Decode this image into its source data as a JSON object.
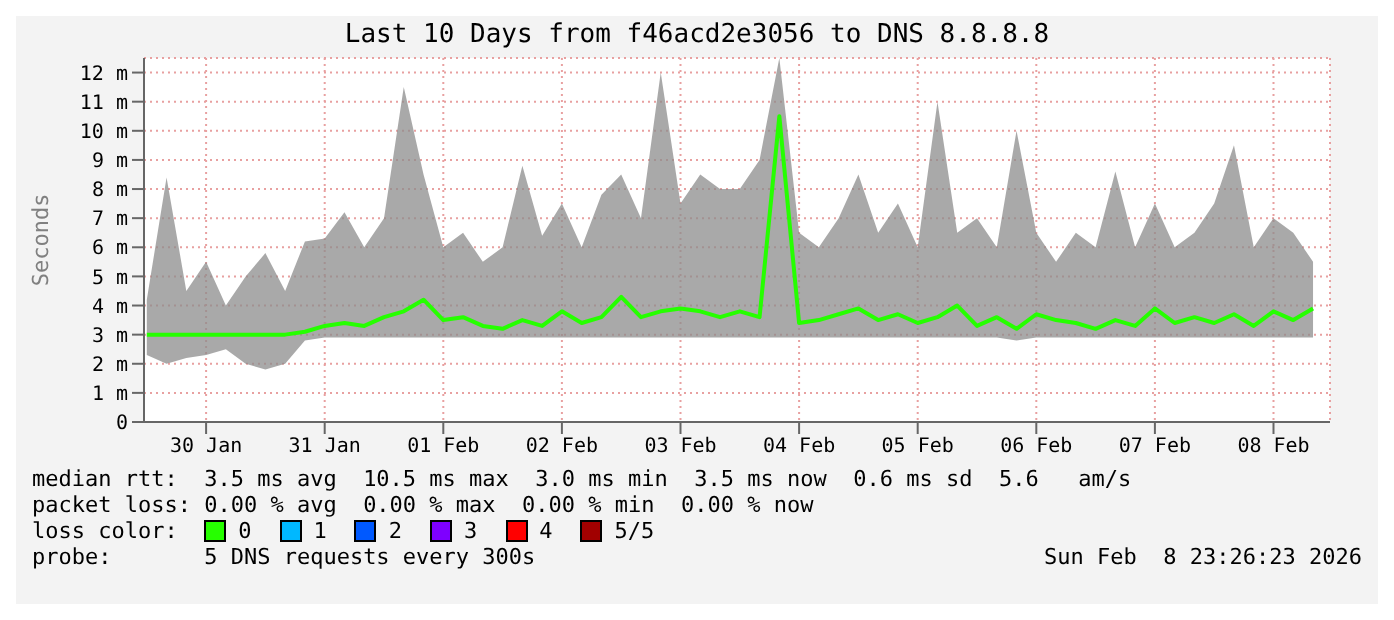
{
  "chart_data": {
    "type": "line",
    "title": "Last 10 Days from f46acd2e3056 to DNS 8.8.8.8",
    "ylabel": "Seconds",
    "x": [
      "2026-01-30T00:00",
      "2026-01-30T04:00",
      "2026-01-30T08:00",
      "2026-01-30T12:00",
      "2026-01-30T16:00",
      "2026-01-30T20:00",
      "2026-01-31T00:00",
      "2026-01-31T04:00",
      "2026-01-31T08:00",
      "2026-01-31T12:00",
      "2026-01-31T16:00",
      "2026-01-31T20:00",
      "2026-02-01T00:00",
      "2026-02-01T04:00",
      "2026-02-01T08:00",
      "2026-02-01T12:00",
      "2026-02-01T16:00",
      "2026-02-01T20:00",
      "2026-02-02T00:00",
      "2026-02-02T04:00",
      "2026-02-02T08:00",
      "2026-02-02T12:00",
      "2026-02-02T16:00",
      "2026-02-02T20:00",
      "2026-02-03T00:00",
      "2026-02-03T04:00",
      "2026-02-03T08:00",
      "2026-02-03T12:00",
      "2026-02-03T16:00",
      "2026-02-03T20:00",
      "2026-02-04T00:00",
      "2026-02-04T04:00",
      "2026-02-04T08:00",
      "2026-02-04T12:00",
      "2026-02-04T16:00",
      "2026-02-04T20:00",
      "2026-02-05T00:00",
      "2026-02-05T04:00",
      "2026-02-05T08:00",
      "2026-02-05T12:00",
      "2026-02-05T16:00",
      "2026-02-05T20:00",
      "2026-02-06T00:00",
      "2026-02-06T04:00",
      "2026-02-06T08:00",
      "2026-02-06T12:00",
      "2026-02-06T16:00",
      "2026-02-06T20:00",
      "2026-02-07T00:00",
      "2026-02-07T04:00",
      "2026-02-07T08:00",
      "2026-02-07T12:00",
      "2026-02-07T16:00",
      "2026-02-07T20:00",
      "2026-02-08T00:00",
      "2026-02-08T04:00",
      "2026-02-08T08:00",
      "2026-02-08T12:00",
      "2026-02-08T16:00",
      "2026-02-08T20:00"
    ],
    "xlim": [
      "2026-01-29T23:26",
      "2026-02-08T23:26"
    ],
    "xticks": [
      {
        "value": "2026-01-30T12:00",
        "label": "30 Jan"
      },
      {
        "value": "2026-01-31T12:00",
        "label": "31 Jan"
      },
      {
        "value": "2026-02-01T12:00",
        "label": "01 Feb"
      },
      {
        "value": "2026-02-02T12:00",
        "label": "02 Feb"
      },
      {
        "value": "2026-02-03T12:00",
        "label": "03 Feb"
      },
      {
        "value": "2026-02-04T12:00",
        "label": "04 Feb"
      },
      {
        "value": "2026-02-05T12:00",
        "label": "05 Feb"
      },
      {
        "value": "2026-02-06T12:00",
        "label": "06 Feb"
      },
      {
        "value": "2026-02-07T12:00",
        "label": "07 Feb"
      },
      {
        "value": "2026-02-08T12:00",
        "label": "08 Feb"
      }
    ],
    "ylim": [
      0,
      12.5
    ],
    "yticks": [
      0,
      {
        "value": 1,
        "label": "1 m"
      },
      {
        "value": 2,
        "label": "2 m"
      },
      {
        "value": 3,
        "label": "3 m"
      },
      {
        "value": 4,
        "label": "4 m"
      },
      {
        "value": 5,
        "label": "5 m"
      },
      {
        "value": 6,
        "label": "6 m"
      },
      {
        "value": 7,
        "label": "7 m"
      },
      {
        "value": 8,
        "label": "8 m"
      },
      {
        "value": 9,
        "label": "9 m"
      },
      {
        "value": 10,
        "label": "10 m"
      },
      {
        "value": 11,
        "label": "11 m"
      },
      {
        "value": 12,
        "label": "12 m"
      }
    ],
    "grid": true,
    "marker": "none",
    "line_style": "solid",
    "legend": "bottom",
    "legend_title": "loss color:",
    "series": [
      {
        "name": "0",
        "color": "#26ff00",
        "values": [
          3.0,
          3.0,
          3.0,
          3.0,
          3.0,
          3.0,
          3.0,
          3.0,
          3.1,
          3.3,
          3.4,
          3.3,
          3.6,
          3.8,
          4.2,
          3.5,
          3.6,
          3.3,
          3.2,
          3.5,
          3.3,
          3.8,
          3.4,
          3.6,
          4.3,
          3.6,
          3.8,
          3.9,
          3.8,
          3.6,
          3.8,
          3.6,
          10.5,
          3.4,
          3.5,
          3.7,
          3.9,
          3.5,
          3.7,
          3.4,
          3.6,
          4.0,
          3.3,
          3.6,
          3.2,
          3.7,
          3.5,
          3.4,
          3.2,
          3.5,
          3.3,
          3.9,
          3.4,
          3.6,
          3.4,
          3.7,
          3.3,
          3.8,
          3.5,
          3.9
        ],
        "lower": [
          2.3,
          2.0,
          2.2,
          2.3,
          2.5,
          2.0,
          1.8,
          2.0,
          2.8,
          2.9,
          2.9,
          2.9,
          2.9,
          2.9,
          2.9,
          2.9,
          2.9,
          2.9,
          2.9,
          2.9,
          2.9,
          2.9,
          2.9,
          2.9,
          2.9,
          2.9,
          2.9,
          2.9,
          2.9,
          2.9,
          2.9,
          2.9,
          2.9,
          2.9,
          2.9,
          2.9,
          2.9,
          2.9,
          2.9,
          2.9,
          2.9,
          2.9,
          2.9,
          2.9,
          2.8,
          2.9,
          2.9,
          2.9,
          2.9,
          2.9,
          2.9,
          2.9,
          2.9,
          2.9,
          2.9,
          2.9,
          2.9,
          2.9,
          2.9,
          2.9
        ],
        "upper": [
          4.2,
          8.4,
          4.5,
          5.5,
          4.0,
          5.0,
          5.8,
          4.5,
          6.2,
          6.3,
          7.2,
          6.0,
          7.0,
          11.5,
          8.5,
          6.0,
          6.5,
          5.5,
          6.0,
          8.8,
          6.4,
          7.5,
          6.0,
          7.8,
          8.5,
          7.0,
          12.0,
          7.5,
          8.5,
          8.0,
          8.0,
          9.0,
          12.5,
          6.5,
          6.0,
          7.0,
          8.5,
          6.5,
          7.5,
          6.0,
          11.0,
          6.5,
          7.0,
          6.0,
          10.0,
          6.5,
          5.5,
          6.5,
          6.0,
          8.6,
          6.0,
          7.5,
          6.0,
          6.5,
          7.5,
          9.5,
          6.0,
          7.0,
          6.5,
          5.5
        ]
      },
      {
        "name": "1",
        "color": "#00b8ff",
        "values": [
          null,
          null,
          null,
          null,
          null,
          null,
          null,
          null,
          null,
          null,
          null,
          null,
          null,
          null,
          null,
          null,
          null,
          null,
          null,
          null,
          null,
          null,
          null,
          null,
          null,
          null,
          null,
          null,
          null,
          null,
          null,
          null,
          null,
          null,
          null,
          null,
          null,
          null,
          null,
          null,
          null,
          null,
          null,
          null,
          null,
          null,
          null,
          null,
          null,
          null,
          null,
          null,
          null,
          null,
          null,
          null,
          null,
          null,
          null,
          null
        ]
      },
      {
        "name": "2",
        "color": "#0059ff",
        "values": [
          null,
          null,
          null,
          null,
          null,
          null,
          null,
          null,
          null,
          null,
          null,
          null,
          null,
          null,
          null,
          null,
          null,
          null,
          null,
          null,
          null,
          null,
          null,
          null,
          null,
          null,
          null,
          null,
          null,
          null,
          null,
          null,
          null,
          null,
          null,
          null,
          null,
          null,
          null,
          null,
          null,
          null,
          null,
          null,
          null,
          null,
          null,
          null,
          null,
          null,
          null,
          null,
          null,
          null,
          null,
          null,
          null,
          null,
          null,
          null
        ]
      },
      {
        "name": "3",
        "color": "#7e00ff",
        "values": [
          null,
          null,
          null,
          null,
          null,
          null,
          null,
          null,
          null,
          null,
          null,
          null,
          null,
          null,
          null,
          null,
          null,
          null,
          null,
          null,
          null,
          null,
          null,
          null,
          null,
          null,
          null,
          null,
          null,
          null,
          null,
          null,
          null,
          null,
          null,
          null,
          null,
          null,
          null,
          null,
          null,
          null,
          null,
          null,
          null,
          null,
          null,
          null,
          null,
          null,
          null,
          null,
          null,
          null,
          null,
          null,
          null,
          null,
          null,
          null
        ]
      },
      {
        "name": "4",
        "color": "#ff0000",
        "values": [
          null,
          null,
          null,
          null,
          null,
          null,
          null,
          null,
          null,
          null,
          null,
          null,
          null,
          null,
          null,
          null,
          null,
          null,
          null,
          null,
          null,
          null,
          null,
          null,
          null,
          null,
          null,
          null,
          null,
          null,
          null,
          null,
          null,
          null,
          null,
          null,
          null,
          null,
          null,
          null,
          null,
          null,
          null,
          null,
          null,
          null,
          null,
          null,
          null,
          null,
          null,
          null,
          null,
          null,
          null,
          null,
          null,
          null,
          null,
          null
        ]
      },
      {
        "name": "5/5",
        "color": "#a10000",
        "values": [
          null,
          null,
          null,
          null,
          null,
          null,
          null,
          null,
          null,
          null,
          null,
          null,
          null,
          null,
          null,
          null,
          null,
          null,
          null,
          null,
          null,
          null,
          null,
          null,
          null,
          null,
          null,
          null,
          null,
          null,
          null,
          null,
          null,
          null,
          null,
          null,
          null,
          null,
          null,
          null,
          null,
          null,
          null,
          null,
          null,
          null,
          null,
          null,
          null,
          null,
          null,
          null,
          null,
          null,
          null,
          null,
          null,
          null,
          null,
          null
        ]
      }
    ],
    "annotations": [
      "median rtt:  3.5 ms avg  10.5 ms max  3.0 ms min  3.5 ms now  0.6 ms sd  5.6   am/s",
      "packet loss: 0.00 % avg  0.00 % max  0.00 % min  0.00 % now",
      "probe:       5 DNS requests every 300s",
      "Sun Feb  8 23:26:23 2026"
    ]
  }
}
